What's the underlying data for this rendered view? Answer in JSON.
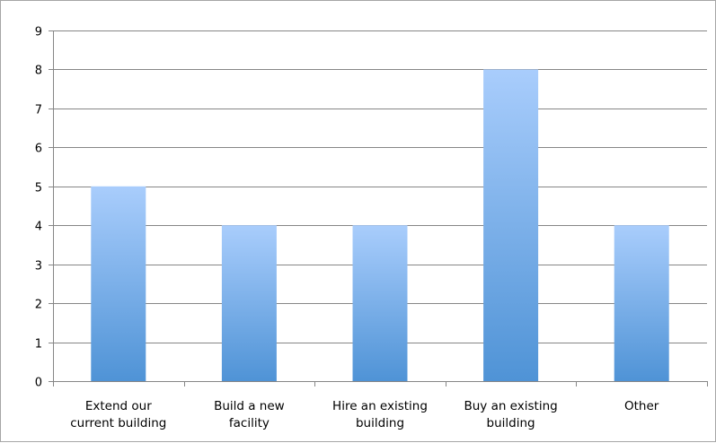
{
  "chart_data": {
    "type": "bar",
    "title": "",
    "xlabel": "",
    "ylabel": "",
    "categories": [
      [
        "Extend our",
        "current building"
      ],
      [
        "Build a new",
        "facility"
      ],
      [
        "Hire an existing",
        "building"
      ],
      [
        "Buy an existing",
        "building"
      ],
      [
        "Other"
      ]
    ],
    "values": [
      5,
      4,
      4,
      8,
      4
    ],
    "ylim": [
      0,
      9
    ],
    "yticks": [
      "0",
      "1",
      "2",
      "3",
      "4",
      "5",
      "6",
      "7",
      "8",
      "9"
    ],
    "grid": true,
    "legend": "none",
    "colors": {
      "bar_top": "#a9cdfc",
      "bar_bottom": "#4f93d6",
      "grid": "#868686",
      "axis": "#868686"
    }
  }
}
